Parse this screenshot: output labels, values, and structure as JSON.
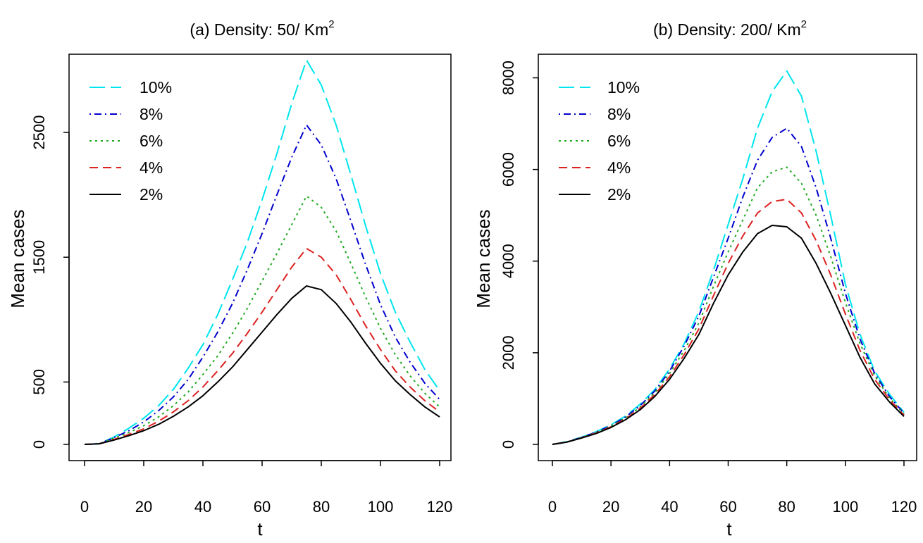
{
  "chart_data": [
    {
      "type": "line",
      "title": "(a) Density: 50/ Km",
      "title_sup": "2",
      "xlabel": "t",
      "ylabel": "Mean cases",
      "xlim": [
        0,
        120
      ],
      "ylim": [
        0,
        3200
      ],
      "xticks": [
        0,
        20,
        40,
        60,
        80,
        100,
        120
      ],
      "yticks": [
        0,
        500,
        1500,
        2500
      ],
      "grid": false,
      "legend_position": "top-left",
      "series": [
        {
          "name": "10%",
          "color": "#00e5ee",
          "dash": "longdash",
          "x": [
            0,
            5,
            10,
            15,
            20,
            25,
            30,
            35,
            40,
            45,
            50,
            55,
            60,
            65,
            70,
            75,
            80,
            85,
            90,
            95,
            100,
            105,
            110,
            115,
            120
          ],
          "y": [
            0,
            5,
            60,
            130,
            210,
            310,
            440,
            610,
            800,
            1040,
            1320,
            1620,
            1960,
            2330,
            2730,
            3080,
            2880,
            2560,
            2160,
            1750,
            1370,
            1060,
            820,
            600,
            430
          ]
        },
        {
          "name": "8%",
          "color": "#0000cd",
          "dash": "dotdash",
          "x": [
            0,
            5,
            10,
            15,
            20,
            25,
            30,
            35,
            40,
            45,
            50,
            55,
            60,
            65,
            70,
            75,
            80,
            85,
            90,
            95,
            100,
            105,
            110,
            115,
            120
          ],
          "y": [
            0,
            5,
            55,
            110,
            180,
            270,
            380,
            520,
            700,
            900,
            1130,
            1400,
            1690,
            2000,
            2300,
            2560,
            2400,
            2130,
            1790,
            1440,
            1120,
            860,
            660,
            490,
            360
          ]
        },
        {
          "name": "6%",
          "color": "#22aa22",
          "dash": "dotted",
          "x": [
            0,
            5,
            10,
            15,
            20,
            25,
            30,
            35,
            40,
            45,
            50,
            55,
            60,
            65,
            70,
            75,
            80,
            85,
            90,
            95,
            100,
            105,
            110,
            115,
            120
          ],
          "y": [
            0,
            5,
            50,
            95,
            150,
            220,
            310,
            420,
            560,
            710,
            890,
            1090,
            1310,
            1530,
            1760,
            1990,
            1900,
            1710,
            1450,
            1180,
            930,
            720,
            550,
            410,
            300
          ]
        },
        {
          "name": "4%",
          "color": "#dd2222",
          "dash": "dashed",
          "x": [
            0,
            5,
            10,
            15,
            20,
            25,
            30,
            35,
            40,
            45,
            50,
            55,
            60,
            65,
            70,
            75,
            80,
            85,
            90,
            95,
            100,
            105,
            110,
            115,
            120
          ],
          "y": [
            0,
            5,
            40,
            80,
            125,
            185,
            260,
            350,
            460,
            590,
            730,
            890,
            1060,
            1240,
            1420,
            1570,
            1500,
            1360,
            1160,
            950,
            760,
            590,
            460,
            350,
            260
          ]
        },
        {
          "name": "2%",
          "color": "#000000",
          "dash": "solid",
          "x": [
            0,
            5,
            10,
            15,
            20,
            25,
            30,
            35,
            40,
            45,
            50,
            55,
            60,
            65,
            70,
            75,
            80,
            85,
            90,
            95,
            100,
            105,
            110,
            115,
            120
          ],
          "y": [
            0,
            5,
            35,
            70,
            110,
            160,
            225,
            300,
            390,
            500,
            620,
            760,
            900,
            1040,
            1170,
            1270,
            1240,
            1130,
            980,
            810,
            650,
            510,
            400,
            300,
            220
          ]
        }
      ]
    },
    {
      "type": "line",
      "title": "(b) Density: 200/ Km",
      "title_sup": "2",
      "xlabel": "t",
      "ylabel": "Mean cases",
      "xlim": [
        0,
        120
      ],
      "ylim": [
        0,
        8300
      ],
      "xticks": [
        0,
        20,
        40,
        60,
        80,
        100,
        120
      ],
      "yticks": [
        0,
        2000,
        4000,
        6000,
        8000
      ],
      "grid": false,
      "legend_position": "top-left",
      "series": [
        {
          "name": "10%",
          "color": "#00e5ee",
          "dash": "longdash",
          "x": [
            0,
            5,
            10,
            15,
            20,
            25,
            30,
            35,
            40,
            45,
            50,
            55,
            60,
            65,
            70,
            75,
            80,
            85,
            90,
            95,
            100,
            105,
            110,
            115,
            120
          ],
          "y": [
            0,
            60,
            160,
            280,
            430,
            620,
            880,
            1200,
            1650,
            2200,
            2900,
            3800,
            4800,
            5800,
            6900,
            7700,
            8150,
            7600,
            6400,
            5000,
            3500,
            2400,
            1600,
            1100,
            700
          ]
        },
        {
          "name": "8%",
          "color": "#0000cd",
          "dash": "dotdash",
          "x": [
            0,
            5,
            10,
            15,
            20,
            25,
            30,
            35,
            40,
            45,
            50,
            55,
            60,
            65,
            70,
            75,
            80,
            85,
            90,
            95,
            100,
            105,
            110,
            115,
            120
          ],
          "y": [
            0,
            55,
            155,
            270,
            410,
            600,
            850,
            1170,
            1600,
            2150,
            2800,
            3650,
            4500,
            5400,
            6200,
            6700,
            6900,
            6500,
            5600,
            4500,
            3300,
            2300,
            1550,
            1050,
            680
          ]
        },
        {
          "name": "6%",
          "color": "#22aa22",
          "dash": "dotted",
          "x": [
            0,
            5,
            10,
            15,
            20,
            25,
            30,
            35,
            40,
            45,
            50,
            55,
            60,
            65,
            70,
            75,
            80,
            85,
            90,
            95,
            100,
            105,
            110,
            115,
            120
          ],
          "y": [
            0,
            55,
            150,
            260,
            400,
            580,
            820,
            1130,
            1550,
            2050,
            2650,
            3450,
            4200,
            4900,
            5600,
            5950,
            6050,
            5700,
            5000,
            4100,
            3100,
            2200,
            1500,
            1020,
            660
          ]
        },
        {
          "name": "4%",
          "color": "#dd2222",
          "dash": "dashed",
          "x": [
            0,
            5,
            10,
            15,
            20,
            25,
            30,
            35,
            40,
            45,
            50,
            55,
            60,
            65,
            70,
            75,
            80,
            85,
            90,
            95,
            100,
            105,
            110,
            115,
            120
          ],
          "y": [
            0,
            50,
            145,
            250,
            385,
            560,
            790,
            1090,
            1480,
            1960,
            2520,
            3250,
            3950,
            4550,
            5050,
            5300,
            5350,
            5050,
            4450,
            3700,
            2850,
            2050,
            1420,
            980,
            640
          ]
        },
        {
          "name": "2%",
          "color": "#000000",
          "dash": "solid",
          "x": [
            0,
            5,
            10,
            15,
            20,
            25,
            30,
            35,
            40,
            45,
            50,
            55,
            60,
            65,
            70,
            75,
            80,
            85,
            90,
            95,
            100,
            105,
            110,
            115,
            120
          ],
          "y": [
            0,
            50,
            140,
            240,
            370,
            540,
            760,
            1050,
            1420,
            1880,
            2400,
            3080,
            3700,
            4200,
            4600,
            4780,
            4750,
            4500,
            3950,
            3300,
            2600,
            1900,
            1320,
            930,
            610
          ]
        }
      ]
    }
  ]
}
